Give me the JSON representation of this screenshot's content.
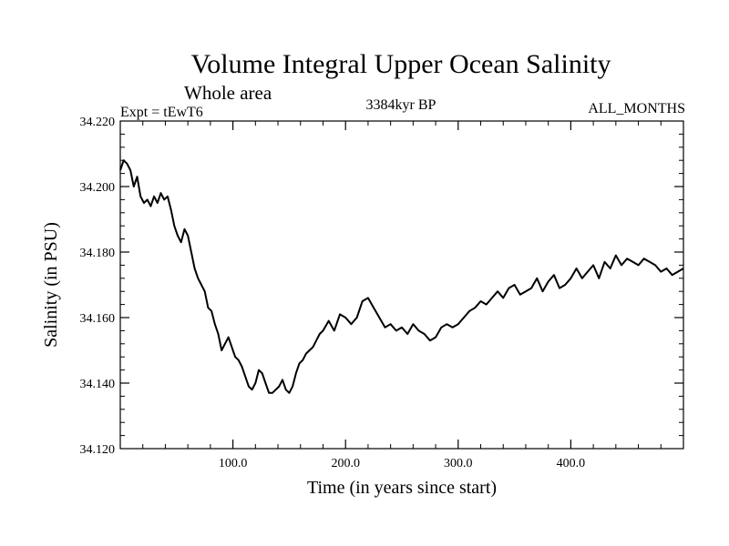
{
  "chart_data": {
    "type": "line",
    "title": "Volume Integral Upper Ocean Salinity",
    "subtitle": "Whole area",
    "left_label": "Expt = tEwT6",
    "center_label": "3384kyr BP",
    "right_label": "ALL_MONTHS",
    "xlabel": "Time (in years since start)",
    "ylabel": "Salinity (in PSU)",
    "xlim": [
      0,
      500
    ],
    "ylim": [
      34.12,
      34.22
    ],
    "x_ticks": [
      100,
      200,
      300,
      400
    ],
    "x_tick_labels": [
      "100.0",
      "200.0",
      "300.0",
      "400.0"
    ],
    "y_ticks": [
      34.12,
      34.14,
      34.16,
      34.18,
      34.2,
      34.22
    ],
    "y_tick_labels": [
      "34.120",
      "34.140",
      "34.160",
      "34.180",
      "34.200",
      "34.220"
    ],
    "series": [
      {
        "name": "Salinity",
        "x": [
          0,
          3,
          6,
          9,
          12,
          15,
          18,
          21,
          24,
          27,
          30,
          33,
          36,
          39,
          42,
          45,
          48,
          51,
          54,
          57,
          60,
          63,
          66,
          69,
          72,
          75,
          78,
          81,
          84,
          87,
          90,
          93,
          96,
          99,
          102,
          105,
          108,
          111,
          114,
          117,
          120,
          123,
          126,
          129,
          132,
          135,
          138,
          141,
          144,
          147,
          150,
          153,
          156,
          159,
          162,
          165,
          168,
          171,
          174,
          177,
          180,
          185,
          190,
          195,
          200,
          205,
          210,
          215,
          220,
          225,
          230,
          235,
          240,
          245,
          250,
          255,
          260,
          265,
          270,
          275,
          280,
          285,
          290,
          295,
          300,
          305,
          310,
          315,
          320,
          325,
          330,
          335,
          340,
          345,
          350,
          355,
          360,
          365,
          370,
          375,
          380,
          385,
          390,
          395,
          400,
          405,
          410,
          415,
          420,
          425,
          430,
          435,
          440,
          445,
          450,
          455,
          460,
          465,
          470,
          475,
          480,
          485,
          490,
          495,
          500
        ],
        "values": [
          34.205,
          34.208,
          34.207,
          34.205,
          34.2,
          34.203,
          34.197,
          34.195,
          34.196,
          34.194,
          34.197,
          34.195,
          34.198,
          34.196,
          34.197,
          34.193,
          34.188,
          34.185,
          34.183,
          34.187,
          34.185,
          34.18,
          34.175,
          34.172,
          34.17,
          34.168,
          34.163,
          34.162,
          34.158,
          34.155,
          34.15,
          34.152,
          34.154,
          34.151,
          34.148,
          34.147,
          34.145,
          34.142,
          34.139,
          34.138,
          34.14,
          34.144,
          34.143,
          34.14,
          34.137,
          34.137,
          34.138,
          34.139,
          34.141,
          34.138,
          34.137,
          34.139,
          34.143,
          34.146,
          34.147,
          34.149,
          34.15,
          34.151,
          34.153,
          34.155,
          34.156,
          34.159,
          34.156,
          34.161,
          34.16,
          34.158,
          34.16,
          34.165,
          34.166,
          34.163,
          34.16,
          34.157,
          34.158,
          34.156,
          34.157,
          34.155,
          34.158,
          34.156,
          34.155,
          34.153,
          34.154,
          34.157,
          34.158,
          34.157,
          34.158,
          34.16,
          34.162,
          34.163,
          34.165,
          34.164,
          34.166,
          34.168,
          34.166,
          34.169,
          34.17,
          34.167,
          34.168,
          34.169,
          34.172,
          34.168,
          34.171,
          34.173,
          34.169,
          34.17,
          34.172,
          34.175,
          34.172,
          34.174,
          34.176,
          34.172,
          34.177,
          34.175,
          34.179,
          34.176,
          34.178,
          34.177,
          34.176,
          34.178,
          34.177,
          34.176,
          34.174,
          34.175,
          34.173,
          34.174,
          34.175
        ]
      }
    ]
  }
}
